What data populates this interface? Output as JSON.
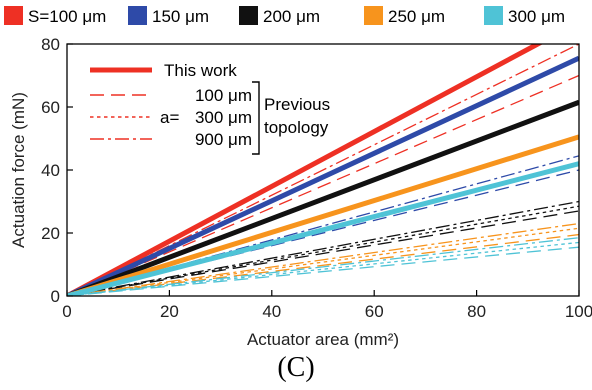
{
  "chart_data": {
    "type": "line",
    "xlabel": "Actuator area (mm²)",
    "ylabel": "Actuation force (mN)",
    "xlim": [
      0,
      100
    ],
    "ylim": [
      0,
      80
    ],
    "xticks": [
      0,
      20,
      40,
      60,
      80,
      100
    ],
    "yticks": [
      0,
      20,
      40,
      60,
      80
    ],
    "legend_top": [
      {
        "name": "S=100 μm",
        "color": "#ee3024"
      },
      {
        "name": "150 μm",
        "color": "#2e4aa8"
      },
      {
        "name": "200 μm",
        "color": "#111111"
      },
      {
        "name": "250 μm",
        "color": "#f7941d"
      },
      {
        "name": "300 μm",
        "color": "#4fc3d6"
      }
    ],
    "legend_inset": {
      "this_work": "This work",
      "sizes": [
        "100 μm",
        "300 μm",
        "900 μm"
      ],
      "a_prefix": "a=",
      "previous": [
        "Previous",
        "topology"
      ]
    },
    "series": [
      {
        "name": "S=100 μm",
        "color": "#ee3024",
        "this_work": 0.87,
        "previous": [
          0.7,
          0.76,
          0.8
        ]
      },
      {
        "name": "150 μm",
        "color": "#2e4aa8",
        "this_work": 0.755,
        "previous": [
          0.4,
          0.42,
          0.445
        ]
      },
      {
        "name": "200 μm",
        "color": "#111111",
        "this_work": 0.615,
        "previous": [
          0.27,
          0.285,
          0.3
        ]
      },
      {
        "name": "250 μm",
        "color": "#f7941d",
        "this_work": 0.505,
        "previous": [
          0.195,
          0.215,
          0.23
        ]
      },
      {
        "name": "300 μm",
        "color": "#4fc3d6",
        "this_work": 0.42,
        "previous": [
          0.155,
          0.17,
          0.185
        ]
      }
    ]
  },
  "caption": "(C)"
}
